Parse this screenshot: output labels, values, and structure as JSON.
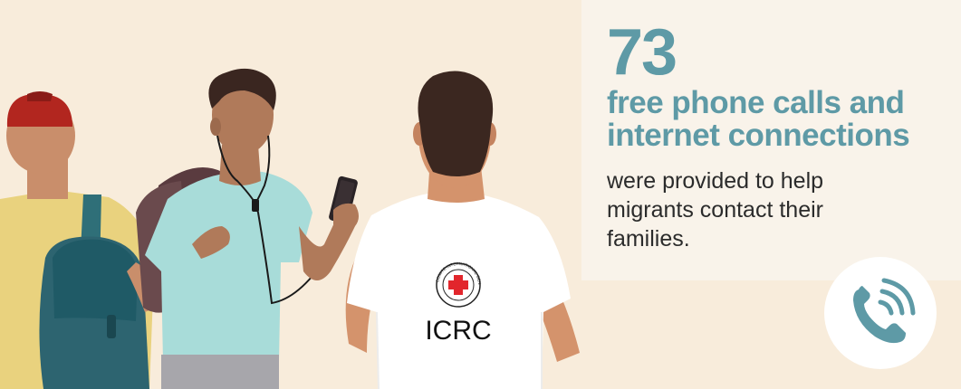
{
  "stat": {
    "number": "73",
    "headline_line1": "free phone calls and",
    "headline_line2": "internet connections",
    "body_line1": "were provided to help",
    "body_line2": "migrants contact their",
    "body_line3": "families."
  },
  "illustration": {
    "shirt_text": "ICRC",
    "emblem_text": "COMITE INTERNATIONAL GENEVE"
  },
  "icons": {
    "phone": "phone-call-icon"
  },
  "colors": {
    "background": "#f8ecdb",
    "panel": "#f9f3ea",
    "accent": "#5e9aa6",
    "text": "#2b2b2b",
    "red_cross": "#e2262c"
  }
}
